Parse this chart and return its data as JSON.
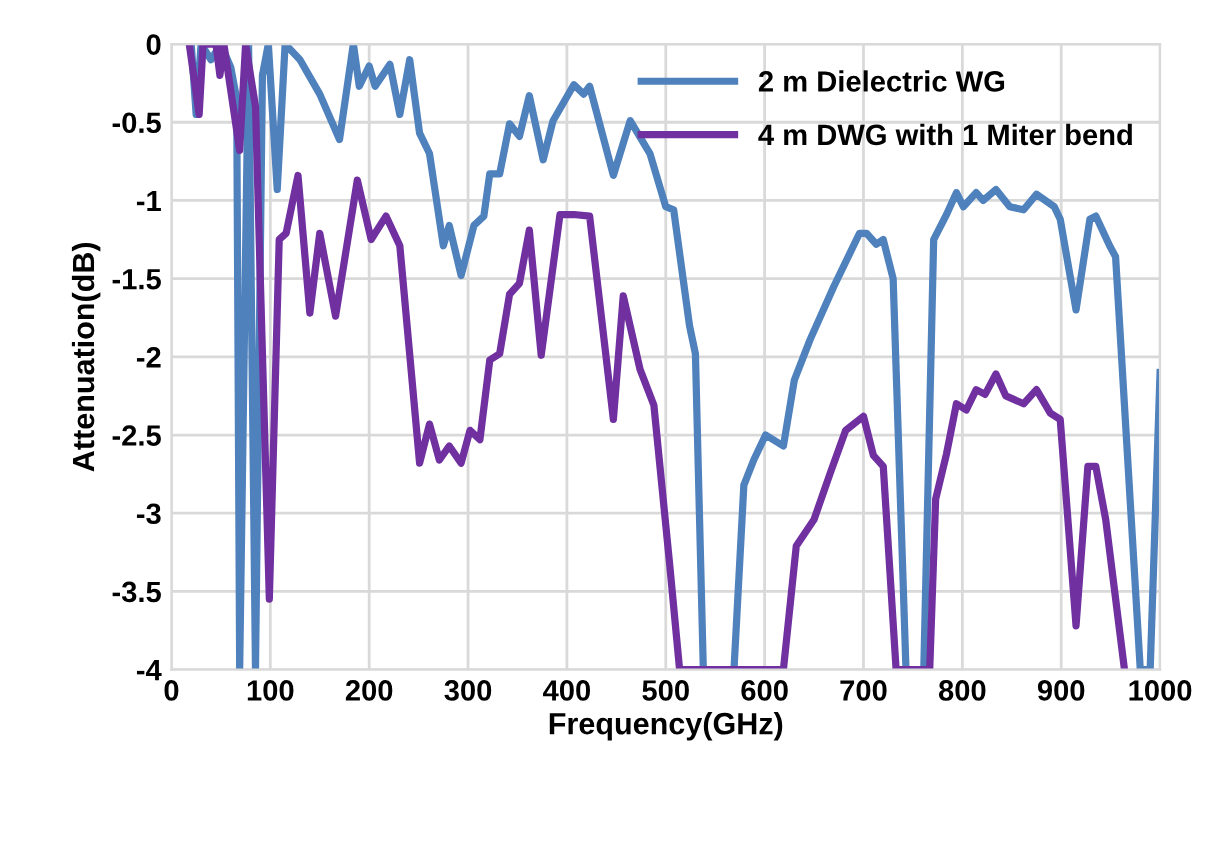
{
  "chart_data": {
    "type": "line",
    "xlabel": "Frequency(GHz)",
    "ylabel": "Attenuation(dB)",
    "xlim": [
      0,
      1000
    ],
    "xticks": [
      0,
      100,
      200,
      300,
      400,
      500,
      600,
      700,
      800,
      900,
      1000
    ],
    "ylim": [
      -4,
      0
    ],
    "yticks": [
      {
        "value": -4,
        "label": "-4"
      },
      {
        "value": -3.5,
        "label": "-3.5"
      },
      {
        "value": -3,
        "label": "-3"
      },
      {
        "value": -2.5,
        "label": "-2.5"
      },
      {
        "value": -2,
        "label": "-2"
      },
      {
        "value": -1.5,
        "label": "-1.5"
      },
      {
        "value": -1,
        "label": "-1"
      },
      {
        "value": -0.5,
        "label": "-0.5"
      },
      {
        "value": 0,
        "label": "0"
      }
    ],
    "grid": true,
    "legend": "top right",
    "marker": "none",
    "line_style": "solid",
    "series": [
      {
        "name": "2 m Dielectric WG",
        "color": "#4f81bd",
        "x": [
          20,
          25,
          30,
          40,
          50,
          60,
          66,
          69,
          78,
          85,
          92,
          98,
          107,
          115,
          130,
          150,
          170,
          184,
          190,
          200,
          206,
          221,
          231,
          241,
          251,
          261,
          275,
          281,
          293,
          306,
          316,
          322,
          332,
          342,
          352,
          362,
          376,
          386,
          407,
          417,
          423,
          447,
          464,
          484,
          500,
          508,
          524,
          530,
          538,
          569,
          579,
          589,
          601,
          619,
          630,
          646,
          670,
          696,
          703,
          713,
          720,
          730,
          743,
          761,
          771,
          784,
          794,
          801,
          814,
          821,
          834,
          848,
          862,
          875,
          893,
          899,
          915,
          929,
          935,
          949,
          955,
          980,
          990,
          1000
        ],
        "values": [
          0,
          -0.45,
          0,
          -0.1,
          0,
          -0.15,
          -0.35,
          -4,
          0,
          -4,
          -0.2,
          0,
          -0.93,
          0,
          -0.1,
          -0.32,
          -0.61,
          0,
          -0.27,
          -0.14,
          -0.27,
          -0.13,
          -0.45,
          -0.1,
          -0.57,
          -0.7,
          -1.29,
          -1.16,
          -1.48,
          -1.16,
          -1.1,
          -0.83,
          -0.83,
          -0.51,
          -0.59,
          -0.33,
          -0.74,
          -0.49,
          -0.26,
          -0.32,
          -0.27,
          -0.84,
          -0.49,
          -0.7,
          -1.04,
          -1.06,
          -1.8,
          -1.98,
          -4,
          -4,
          -2.82,
          -2.66,
          -2.5,
          -2.57,
          -2.15,
          -1.89,
          -1.55,
          -1.21,
          -1.21,
          -1.28,
          -1.25,
          -1.5,
          -4,
          -4,
          -1.25,
          -1.09,
          -0.95,
          -1.04,
          -0.95,
          -1.0,
          -0.93,
          -1.04,
          -1.06,
          -0.96,
          -1.04,
          -1.12,
          -1.7,
          -1.12,
          -1.1,
          -1.29,
          -1.36,
          -4,
          -4,
          -2.1
        ]
      },
      {
        "name": "4 m DWG with 1 Miter bend",
        "color": "#7030a0",
        "x": [
          18,
          28,
          32,
          45,
          49,
          53,
          69,
          75,
          85,
          99,
          109,
          116,
          128,
          140,
          150,
          166,
          188,
          202,
          217,
          231,
          251,
          261,
          271,
          281,
          293,
          302,
          312,
          322,
          332,
          342,
          352,
          362,
          374,
          393,
          407,
          423,
          447,
          457,
          474,
          488,
          504,
          514,
          619,
          632,
          650,
          666,
          682,
          700,
          710,
          720,
          733,
          767,
          773,
          784,
          794,
          804,
          814,
          823,
          834,
          844,
          862,
          875,
          889,
          899,
          915,
          927,
          935,
          945,
          964
        ],
        "values": [
          0,
          -0.45,
          0,
          0,
          -0.2,
          0,
          -0.68,
          0,
          -0.4,
          -3.55,
          -1.25,
          -1.21,
          -0.84,
          -1.72,
          -1.21,
          -1.74,
          -0.87,
          -1.25,
          -1.1,
          -1.29,
          -2.68,
          -2.43,
          -2.66,
          -2.57,
          -2.68,
          -2.47,
          -2.53,
          -2.02,
          -1.98,
          -1.6,
          -1.53,
          -1.19,
          -1.99,
          -1.09,
          -1.09,
          -1.1,
          -2.4,
          -1.61,
          -2.08,
          -2.31,
          -3.33,
          -4,
          -4,
          -3.21,
          -3.04,
          -2.75,
          -2.47,
          -2.38,
          -2.63,
          -2.7,
          -4,
          -4,
          -2.91,
          -2.62,
          -2.3,
          -2.34,
          -2.21,
          -2.24,
          -2.11,
          -2.25,
          -2.3,
          -2.21,
          -2.36,
          -2.4,
          -3.72,
          -2.7,
          -2.7,
          -3.04,
          -4
        ]
      }
    ]
  }
}
